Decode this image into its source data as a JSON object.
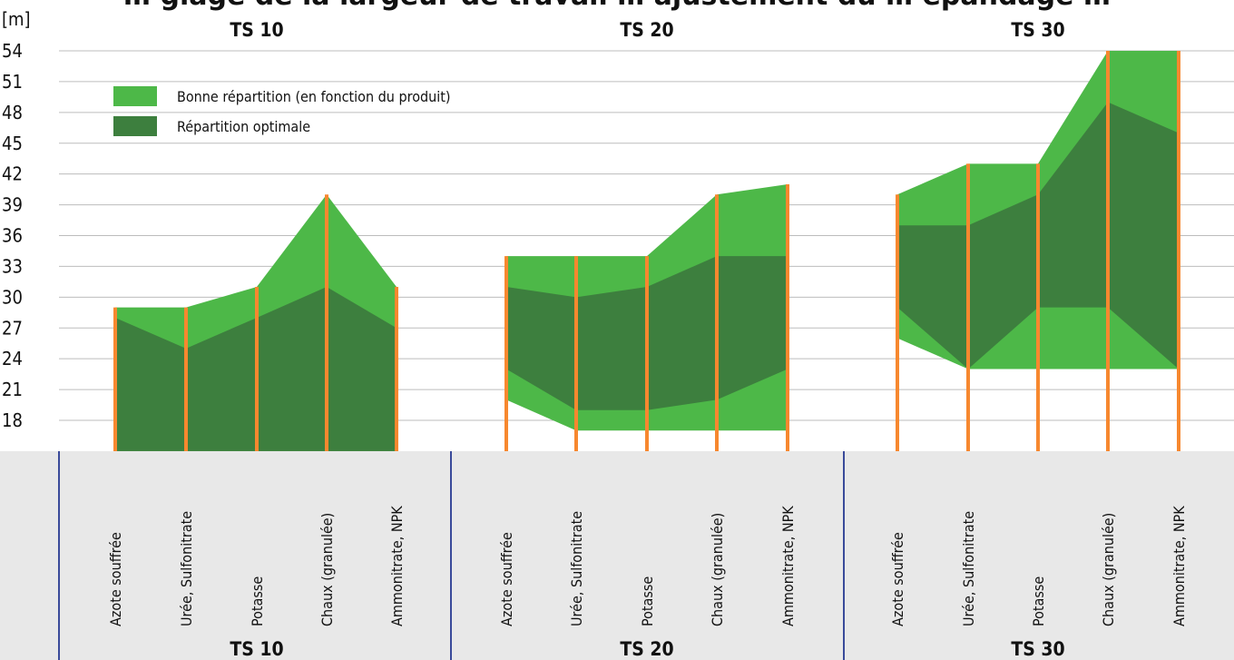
{
  "chart_data": {
    "type": "area",
    "title": "… glage de la largeur de travail … ajustement du … épandage …",
    "yunit": "[m]",
    "ylim": [
      18,
      54
    ],
    "yticks": [
      18,
      21,
      24,
      27,
      30,
      33,
      36,
      39,
      42,
      45,
      48,
      51,
      54
    ],
    "legend": {
      "placement": "top-left",
      "items": [
        {
          "name": "Bonne répartition (en fonction du produit)",
          "color": "#4db848"
        },
        {
          "name": "Répartition optimale",
          "color": "#3d7f3e"
        }
      ]
    },
    "categories": [
      "Azote souffrée",
      "Urée, Sulfonitrate",
      "Potasse",
      "Chaux (granulée)",
      "Ammonitrate, NPK"
    ],
    "groups": [
      {
        "name": "TS 10",
        "good_max": [
          29,
          29,
          31,
          40,
          31
        ],
        "good_min": [
          15,
          15,
          15,
          15,
          15
        ],
        "opt_max": [
          28,
          25,
          28,
          31,
          27
        ],
        "opt_min": [
          15,
          15,
          15,
          15,
          15
        ]
      },
      {
        "name": "TS 20",
        "good_max": [
          34,
          34,
          34,
          40,
          41
        ],
        "good_min": [
          20,
          17,
          17,
          17,
          17
        ],
        "opt_max": [
          31,
          30,
          31,
          34,
          34
        ],
        "opt_min": [
          23,
          19,
          19,
          20,
          23
        ]
      },
      {
        "name": "TS 30",
        "good_max": [
          40,
          43,
          43,
          54,
          54
        ],
        "good_min": [
          26,
          23,
          23,
          23,
          23
        ],
        "opt_max": [
          37,
          37,
          40,
          49,
          46
        ],
        "opt_min": [
          29,
          23,
          29,
          29,
          23
        ]
      }
    ],
    "colors": {
      "good": "#4db848",
      "optimal": "#3d7f3e",
      "post": "#f7882f",
      "grid": "#bdbdbd",
      "panel": "#e8e8e8",
      "divider": "#3a4a9a"
    }
  }
}
